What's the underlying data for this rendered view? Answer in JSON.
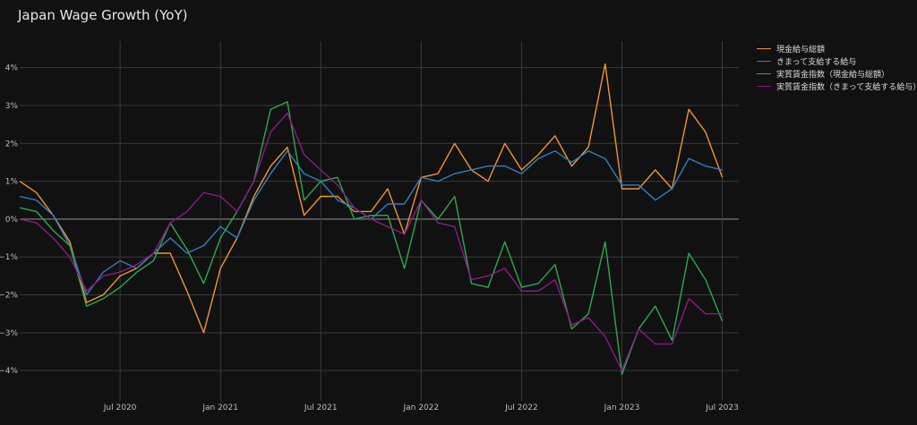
{
  "title": "Japan Wage Growth (YoY)",
  "chart_data": {
    "type": "line",
    "title": "Japan Wage Growth (YoY)",
    "xlabel": "",
    "ylabel": "",
    "x_start": "2020-01",
    "x_tick_labels": [
      "Jul 2020",
      "Jan 2021",
      "Jul 2021",
      "Jan 2022",
      "Jul 2022",
      "Jan 2023",
      "Jul 2023"
    ],
    "y_ticks": [
      -4,
      -3,
      -2,
      -1,
      0,
      1,
      2,
      3,
      4
    ],
    "y_tick_labels": [
      "−4%",
      "−3%",
      "−2%",
      "−1%",
      "0%",
      "1%",
      "2%",
      "3%",
      "4%"
    ],
    "ylim": [
      -4.8,
      4.7
    ],
    "x": [
      "2020-01",
      "2020-02",
      "2020-03",
      "2020-04",
      "2020-05",
      "2020-06",
      "2020-07",
      "2020-08",
      "2020-09",
      "2020-10",
      "2020-11",
      "2020-12",
      "2021-01",
      "2021-02",
      "2021-03",
      "2021-04",
      "2021-05",
      "2021-06",
      "2021-07",
      "2021-08",
      "2021-09",
      "2021-10",
      "2021-11",
      "2021-12",
      "2022-01",
      "2022-02",
      "2022-03",
      "2022-04",
      "2022-05",
      "2022-06",
      "2022-07",
      "2022-08",
      "2022-09",
      "2022-10",
      "2022-11",
      "2022-12",
      "2023-01",
      "2023-02",
      "2023-03",
      "2023-04",
      "2023-05",
      "2023-06",
      "2023-07"
    ],
    "grid": true,
    "legend_position": "top-right",
    "series": [
      {
        "name": "現金給与総額",
        "color": "#f0952f",
        "values": [
          1.0,
          0.7,
          0.1,
          -0.6,
          -2.2,
          -2.0,
          -1.5,
          -1.3,
          -0.9,
          -0.9,
          -1.9,
          -3.0,
          -1.3,
          -0.5,
          0.6,
          1.4,
          1.9,
          0.1,
          0.6,
          0.6,
          0.2,
          0.2,
          0.8,
          -0.4,
          1.1,
          1.2,
          2.0,
          1.3,
          1.0,
          2.0,
          1.3,
          1.7,
          2.2,
          1.4,
          1.9,
          4.1,
          0.8,
          0.8,
          1.3,
          0.8,
          2.9,
          2.3,
          1.1
        ]
      },
      {
        "name": "きまって支給する給与",
        "color": "#2f7fc1",
        "values": [
          0.6,
          0.5,
          0.1,
          -0.7,
          -2.0,
          -1.4,
          -1.1,
          -1.3,
          -0.9,
          -0.5,
          -0.9,
          -0.7,
          -0.2,
          -0.5,
          0.5,
          1.2,
          1.8,
          1.2,
          1.0,
          0.5,
          0.3,
          0.0,
          0.4,
          0.4,
          1.1,
          1.0,
          1.2,
          1.3,
          1.4,
          1.4,
          1.2,
          1.6,
          1.8,
          1.5,
          1.8,
          1.6,
          0.9,
          0.9,
          0.5,
          0.8,
          1.6,
          1.4,
          1.3
        ]
      },
      {
        "name": "実質賃金指数（現金給与総額）",
        "color": "#2ea84f",
        "values": [
          0.3,
          0.2,
          -0.3,
          -0.7,
          -2.3,
          -2.1,
          -1.8,
          -1.4,
          -1.1,
          -0.1,
          -0.8,
          -1.7,
          -0.5,
          0.2,
          1.0,
          2.9,
          3.1,
          0.5,
          1.0,
          1.1,
          0.0,
          0.1,
          0.1,
          -1.3,
          0.5,
          0.0,
          0.6,
          -1.7,
          -1.8,
          -0.6,
          -1.8,
          -1.7,
          -1.2,
          -2.9,
          -2.5,
          -0.6,
          -4.1,
          -2.9,
          -2.3,
          -3.2,
          -0.9,
          -1.6,
          -2.7
        ]
      },
      {
        "name": "実質賃金指数（きまって支給する給与）",
        "color": "#8a1a8a",
        "values": [
          0.0,
          -0.1,
          -0.5,
          -1.0,
          -1.9,
          -1.5,
          -1.4,
          -1.2,
          -0.9,
          -0.1,
          0.2,
          0.7,
          0.6,
          0.2,
          1.0,
          2.3,
          2.8,
          1.7,
          1.3,
          0.9,
          0.3,
          0.0,
          -0.2,
          -0.4,
          0.5,
          -0.1,
          -0.2,
          -1.6,
          -1.5,
          -1.3,
          -1.9,
          -1.9,
          -1.6,
          -2.8,
          -2.6,
          -3.1,
          -4.0,
          -2.9,
          -3.3,
          -3.3,
          -2.1,
          -2.5,
          -2.5
        ]
      }
    ]
  }
}
